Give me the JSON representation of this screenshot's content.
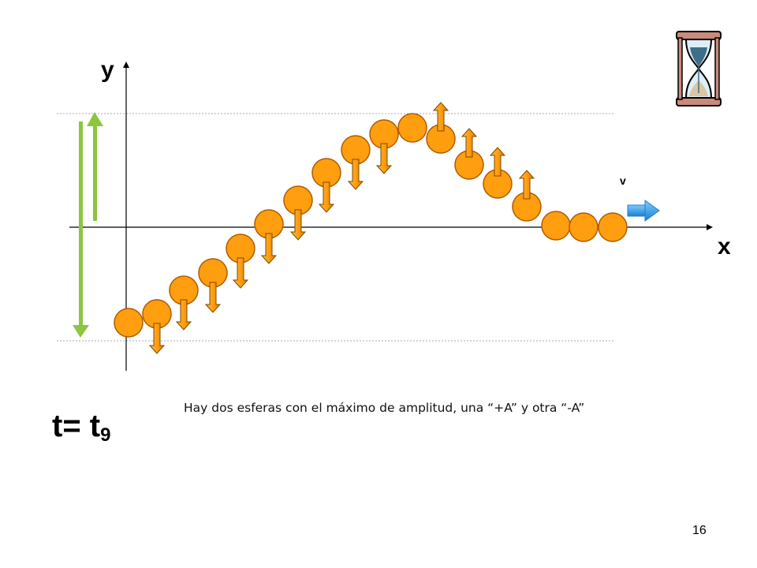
{
  "axes": {
    "y_label": "y",
    "x_label": "x"
  },
  "velocity_label": "v",
  "caption": "Hay dos esferas con el máximo de amplitud, una “+A” y otra “-A”",
  "time": {
    "prefix": "t= t",
    "subscript": "9"
  },
  "page_number": "16",
  "icons": {
    "timer": "hourglass-icon"
  },
  "colors": {
    "sphere_fill": "#FF9E0F",
    "sphere_stroke": "#B05A00",
    "amplitude_arrow": "#8CC63F",
    "velocity_arrow": "#3BA3E8",
    "reference_line": "#AAAAAA"
  }
}
